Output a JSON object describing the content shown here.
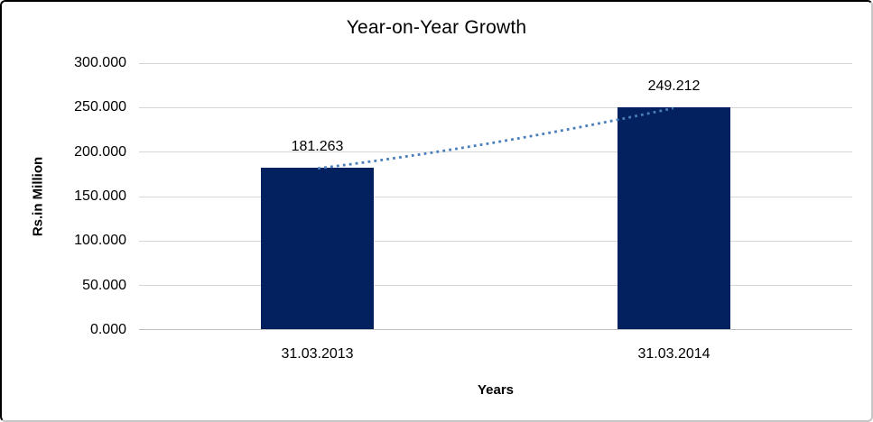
{
  "chart_data": {
    "type": "bar",
    "title": "Year-on-Year Growth",
    "categories": [
      "31.03.2013",
      "31.03.2014"
    ],
    "values": [
      181.263,
      249.212
    ],
    "data_labels": [
      "181.263",
      "249.212"
    ],
    "xlabel": "Years",
    "ylabel": "Rs.in Million",
    "ylim": [
      0,
      300
    ],
    "ytick_interval": 50,
    "ytick_labels": [
      "0.000",
      "50.000",
      "100.000",
      "150.000",
      "200.000",
      "250.000",
      "300.000"
    ],
    "grid": true,
    "legend": "none",
    "trendline": {
      "style": "dotted",
      "from_category_index": 0,
      "to_category_index": 1
    },
    "colors": {
      "bar": "#03215f",
      "trendline": "#4a7ebb",
      "gridline": "#d6d6d6",
      "axis_line": "#bfbfbf",
      "text": "#000000"
    }
  }
}
